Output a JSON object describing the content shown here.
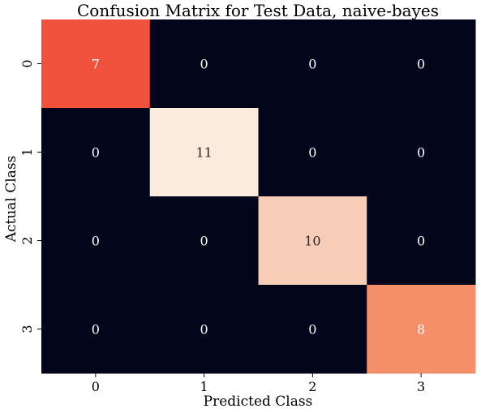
{
  "chart_data": {
    "type": "heatmap",
    "title": "Confusion Matrix for Test Data, naive-bayes",
    "xlabel": "Predicted Class",
    "ylabel": "Actual Class",
    "x_categories": [
      "0",
      "1",
      "2",
      "3"
    ],
    "y_categories": [
      "0",
      "1",
      "2",
      "3"
    ],
    "values": [
      [
        7,
        0,
        0,
        0
      ],
      [
        0,
        11,
        0,
        0
      ],
      [
        0,
        0,
        10,
        0
      ],
      [
        0,
        0,
        0,
        8
      ]
    ],
    "colorbar": false,
    "colors": {
      "zero": "#03051a",
      "low": "#f0513b",
      "mid": "#f5916b",
      "high": "#faebdd"
    }
  }
}
